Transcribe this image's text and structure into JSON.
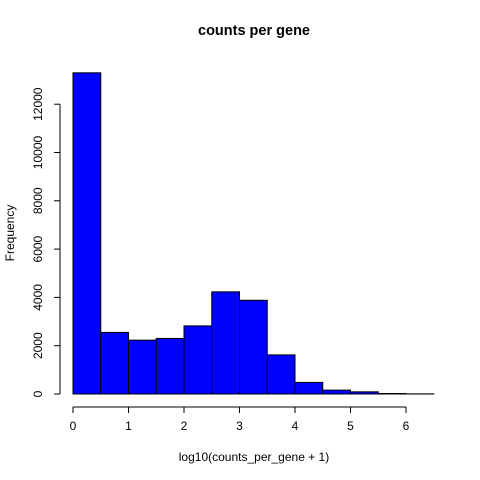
{
  "chart_data": {
    "type": "bar",
    "title": "counts per gene",
    "xlabel": "log10(counts_per_gene + 1)",
    "ylabel": "Frequency",
    "bins": [
      {
        "start": 0.0,
        "end": 0.5,
        "count": 13300
      },
      {
        "start": 0.5,
        "end": 1.0,
        "count": 2550
      },
      {
        "start": 1.0,
        "end": 1.5,
        "count": 2230
      },
      {
        "start": 1.5,
        "end": 2.0,
        "count": 2300
      },
      {
        "start": 2.0,
        "end": 2.5,
        "count": 2820
      },
      {
        "start": 2.5,
        "end": 3.0,
        "count": 4230
      },
      {
        "start": 3.0,
        "end": 3.5,
        "count": 3880
      },
      {
        "start": 3.5,
        "end": 4.0,
        "count": 1620
      },
      {
        "start": 4.0,
        "end": 4.5,
        "count": 480
      },
      {
        "start": 4.5,
        "end": 5.0,
        "count": 160
      },
      {
        "start": 5.0,
        "end": 5.5,
        "count": 90
      },
      {
        "start": 5.5,
        "end": 6.0,
        "count": 20
      },
      {
        "start": 6.0,
        "end": 6.5,
        "count": 5
      }
    ],
    "xlim": [
      0,
      6.5
    ],
    "ylim": [
      0,
      13300
    ],
    "x_ticks": [
      0,
      1,
      2,
      3,
      4,
      5,
      6
    ],
    "y_ticks": [
      0,
      2000,
      4000,
      6000,
      8000,
      10000,
      12000
    ],
    "bar_color": "#0000FF",
    "grid": false,
    "legend": "none"
  }
}
